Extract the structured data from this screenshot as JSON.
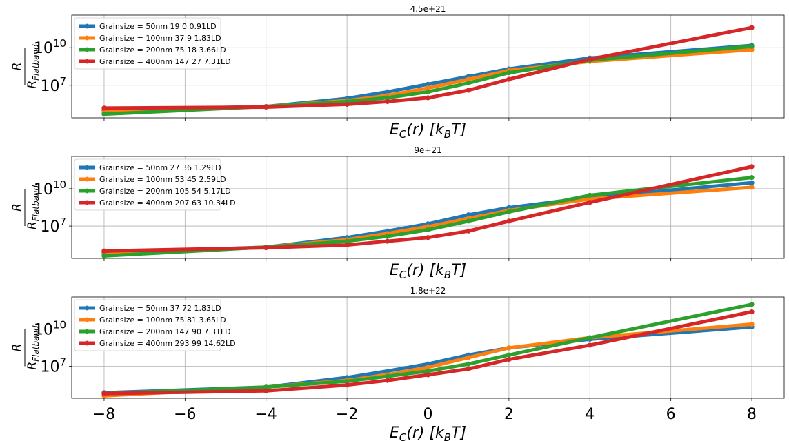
{
  "chart_data": [
    {
      "type": "line",
      "title": "4.5e+21",
      "xlabel": "E_C(r) [k_BT]",
      "ylabel": "R / R_Flatband",
      "yscale": "log",
      "xlim": [
        -8.8,
        8.8
      ],
      "ylim_exponent": [
        4.4,
        12.6
      ],
      "xticks": [
        -8,
        -6,
        -4,
        -2,
        0,
        2,
        4,
        6,
        8
      ],
      "yticks": [
        {
          "base": "10",
          "exp": "7",
          "value_exp": 7
        },
        {
          "base": "10",
          "exp": "10",
          "value_exp": 10
        }
      ],
      "show_xticklabels": false,
      "grid": true,
      "legend": "upper left",
      "x": [
        -8,
        -4,
        -2,
        -1,
        0,
        1,
        2,
        4,
        8
      ],
      "series": [
        {
          "name": "Grainsize = 50nm 19 0 0.91LD",
          "color": "#1f77b4",
          "values": [
            100000.0,
            200000.0,
            900000.0,
            3000000.0,
            12000000.0,
            50000000.0,
            200000000.0,
            1500000000.0,
            15000000000.0
          ]
        },
        {
          "name": "Grainsize = 100nm 37 9 1.83LD",
          "color": "#ff7f0e",
          "values": [
            70000.0,
            200000.0,
            600000.0,
            1500000.0,
            6000000.0,
            30000000.0,
            150000000.0,
            800000000.0,
            7000000000.0
          ]
        },
        {
          "name": "Grainsize = 200nm 75 18 3.66LD",
          "color": "#2ca02c",
          "values": [
            50000.0,
            200000.0,
            500000.0,
            1000000.0,
            3000000.0,
            15000000.0,
            100000000.0,
            1000000000.0,
            13000000000.0
          ]
        },
        {
          "name": "Grainsize = 400nm 147 27 7.31LD",
          "color": "#d62728",
          "values": [
            150000.0,
            180000.0,
            300000.0,
            500000.0,
            1000000.0,
            4000000.0,
            30000000.0,
            1200000000.0,
            400000000000.0
          ]
        }
      ]
    },
    {
      "type": "line",
      "title": "9e+21",
      "xlabel": "E_C(r) [k_BT]",
      "ylabel": "R / R_Flatband",
      "yscale": "log",
      "xlim": [
        -8.8,
        8.8
      ],
      "ylim_exponent": [
        4.4,
        12.6
      ],
      "xticks": [
        -8,
        -6,
        -4,
        -2,
        0,
        2,
        4,
        6,
        8
      ],
      "yticks": [
        {
          "base": "10",
          "exp": "7",
          "value_exp": 7
        },
        {
          "base": "10",
          "exp": "10",
          "value_exp": 10
        }
      ],
      "show_xticklabels": false,
      "grid": true,
      "legend": "upper left",
      "x": [
        -8,
        -4,
        -2,
        -1,
        0,
        1,
        2,
        4,
        8
      ],
      "series": [
        {
          "name": "Grainsize = 50nm 27 36 1.29LD",
          "color": "#1f77b4",
          "values": [
            70000.0,
            200000.0,
            1200000.0,
            4000000.0,
            15000000.0,
            80000000.0,
            300000000.0,
            2000000000.0,
            30000000000.0
          ]
        },
        {
          "name": "Grainsize = 100nm 53 45 2.59LD",
          "color": "#ff7f0e",
          "values": [
            50000.0,
            200000.0,
            800000.0,
            2500000.0,
            9000000.0,
            40000000.0,
            180000000.0,
            1500000000.0,
            13000000000.0
          ]
        },
        {
          "name": "Grainsize = 200nm 105 54 5.17LD",
          "color": "#2ca02c",
          "values": [
            40000.0,
            200000.0,
            600000.0,
            1500000.0,
            5000000.0,
            25000000.0,
            140000000.0,
            3000000000.0,
            80000000000.0
          ]
        },
        {
          "name": "Grainsize = 400nm 207 63 10.34LD",
          "color": "#d62728",
          "values": [
            100000.0,
            180000.0,
            300000.0,
            600000.0,
            1200000.0,
            4000000.0,
            25000000.0,
            800000000.0,
            600000000000.0
          ]
        }
      ]
    },
    {
      "type": "line",
      "title": "1.8e+22",
      "xlabel": "E_C(r) [k_BT]",
      "ylabel": "R / R_Flatband",
      "yscale": "log",
      "xlim": [
        -8.8,
        8.8
      ],
      "ylim_exponent": [
        4.4,
        12.6
      ],
      "xticks": [
        -8,
        -6,
        -4,
        -2,
        0,
        2,
        4,
        6,
        8
      ],
      "xticklabels": [
        "−8",
        "−6",
        "−4",
        "−2",
        "0",
        "2",
        "4",
        "6",
        "8"
      ],
      "yticks": [
        {
          "base": "10",
          "exp": "7",
          "value_exp": 7
        },
        {
          "base": "10",
          "exp": "10",
          "value_exp": 10
        }
      ],
      "show_xticklabels": true,
      "grid": true,
      "legend": "upper left",
      "x": [
        -8,
        -4,
        -2,
        -1,
        0,
        1,
        2,
        4,
        8
      ],
      "series": [
        {
          "name": "Grainsize = 50nm 37 72 1.83LD",
          "color": "#1f77b4",
          "values": [
            70000.0,
            200000.0,
            1200000.0,
            4000000.0,
            15000000.0,
            80000000.0,
            300000000.0,
            1500000000.0,
            15000000000.0
          ]
        },
        {
          "name": "Grainsize = 100nm 75 81 3.65LD",
          "color": "#ff7f0e",
          "values": [
            40000.0,
            200000.0,
            700000.0,
            2000000.0,
            8000000.0,
            50000000.0,
            300000000.0,
            2000000000.0,
            25000000000.0
          ]
        },
        {
          "name": "Grainsize = 200nm 147 90 7.31LD",
          "color": "#2ca02c",
          "values": [
            60000.0,
            200000.0,
            600000.0,
            1500000.0,
            4000000.0,
            15000000.0,
            80000000.0,
            2000000000.0,
            1000000000000.0
          ]
        },
        {
          "name": "Grainsize = 400nm 293 99 14.62LD",
          "color": "#d62728",
          "values": [
            60000.0,
            100000.0,
            300000.0,
            700000.0,
            2000000.0,
            6000000.0,
            35000000.0,
            500000000.0,
            250000000000.0
          ]
        }
      ]
    }
  ]
}
